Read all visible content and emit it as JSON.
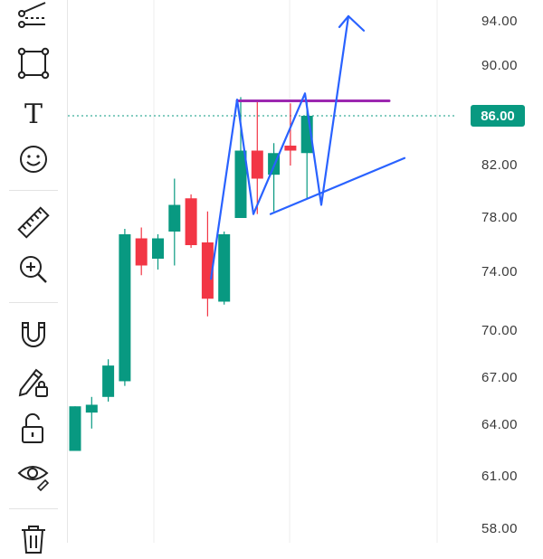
{
  "toolbar": {
    "tools": [
      {
        "icon": "multi-line-tool-icon"
      },
      {
        "icon": "rectangle-tool-icon"
      },
      {
        "icon": "text-tool-icon",
        "glyph": "T"
      },
      {
        "icon": "emoji-tool-icon"
      },
      {
        "icon": "ruler-icon"
      },
      {
        "icon": "zoom-in-icon"
      },
      {
        "icon": "magnet-icon"
      },
      {
        "icon": "lock-drawings-icon"
      },
      {
        "icon": "unlock-icon"
      },
      {
        "icon": "eye-icon"
      },
      {
        "icon": "trash-icon"
      }
    ]
  },
  "price_axis": {
    "labels": [
      "94.00",
      "90.00",
      "86.00",
      "82.00",
      "78.00",
      "74.00",
      "70.00",
      "67.00",
      "64.00",
      "61.00",
      "58.00"
    ],
    "current_price": "86.00",
    "current_price_color": "#089981"
  },
  "colors": {
    "up": "#089981",
    "down": "#f23645",
    "drawing": "#2962ff",
    "resistance": "#9c27b0"
  },
  "chart_data": {
    "type": "candlestick",
    "ylim": [
      56.5,
      95.5
    ],
    "candles": [
      {
        "open": 62.5,
        "high": 65.2,
        "low": 62.5,
        "close": 65.2
      },
      {
        "open": 64.8,
        "high": 65.8,
        "low": 63.8,
        "close": 65.3
      },
      {
        "open": 65.8,
        "high": 68.2,
        "low": 65.5,
        "close": 67.8
      },
      {
        "open": 66.8,
        "high": 77.2,
        "low": 66.5,
        "close": 76.8
      },
      {
        "open": 76.5,
        "high": 77.3,
        "low": 73.8,
        "close": 74.5
      },
      {
        "open": 75.0,
        "high": 76.8,
        "low": 74.2,
        "close": 76.5
      },
      {
        "open": 77.0,
        "high": 81.0,
        "low": 74.5,
        "close": 79.0
      },
      {
        "open": 79.5,
        "high": 79.8,
        "low": 75.8,
        "close": 76.0
      },
      {
        "open": 76.2,
        "high": 78.5,
        "low": 71.0,
        "close": 72.2
      },
      {
        "open": 72.0,
        "high": 77.0,
        "low": 71.8,
        "close": 76.8
      },
      {
        "open": 78.0,
        "high": 87.5,
        "low": 78.0,
        "close": 83.2
      },
      {
        "open": 83.2,
        "high": 87.3,
        "low": 78.3,
        "close": 81.0
      },
      {
        "open": 81.3,
        "high": 83.8,
        "low": 78.5,
        "close": 83.0
      },
      {
        "open": 83.6,
        "high": 87.0,
        "low": 82.0,
        "close": 83.2
      },
      {
        "open": 83.0,
        "high": 87.2,
        "low": 79.5,
        "close": 86.0
      }
    ],
    "current_price": 86.0,
    "resistance_level": 87.2,
    "drawings": {
      "zigzag": [
        [
          0,
          73.5
        ],
        [
          1,
          87.3
        ],
        [
          2,
          78.3
        ],
        [
          3,
          87.8
        ],
        [
          4,
          79.0
        ],
        [
          5,
          94.5
        ]
      ],
      "support_line": [
        [
          78.3
        ],
        [
          82.6
        ]
      ]
    }
  }
}
